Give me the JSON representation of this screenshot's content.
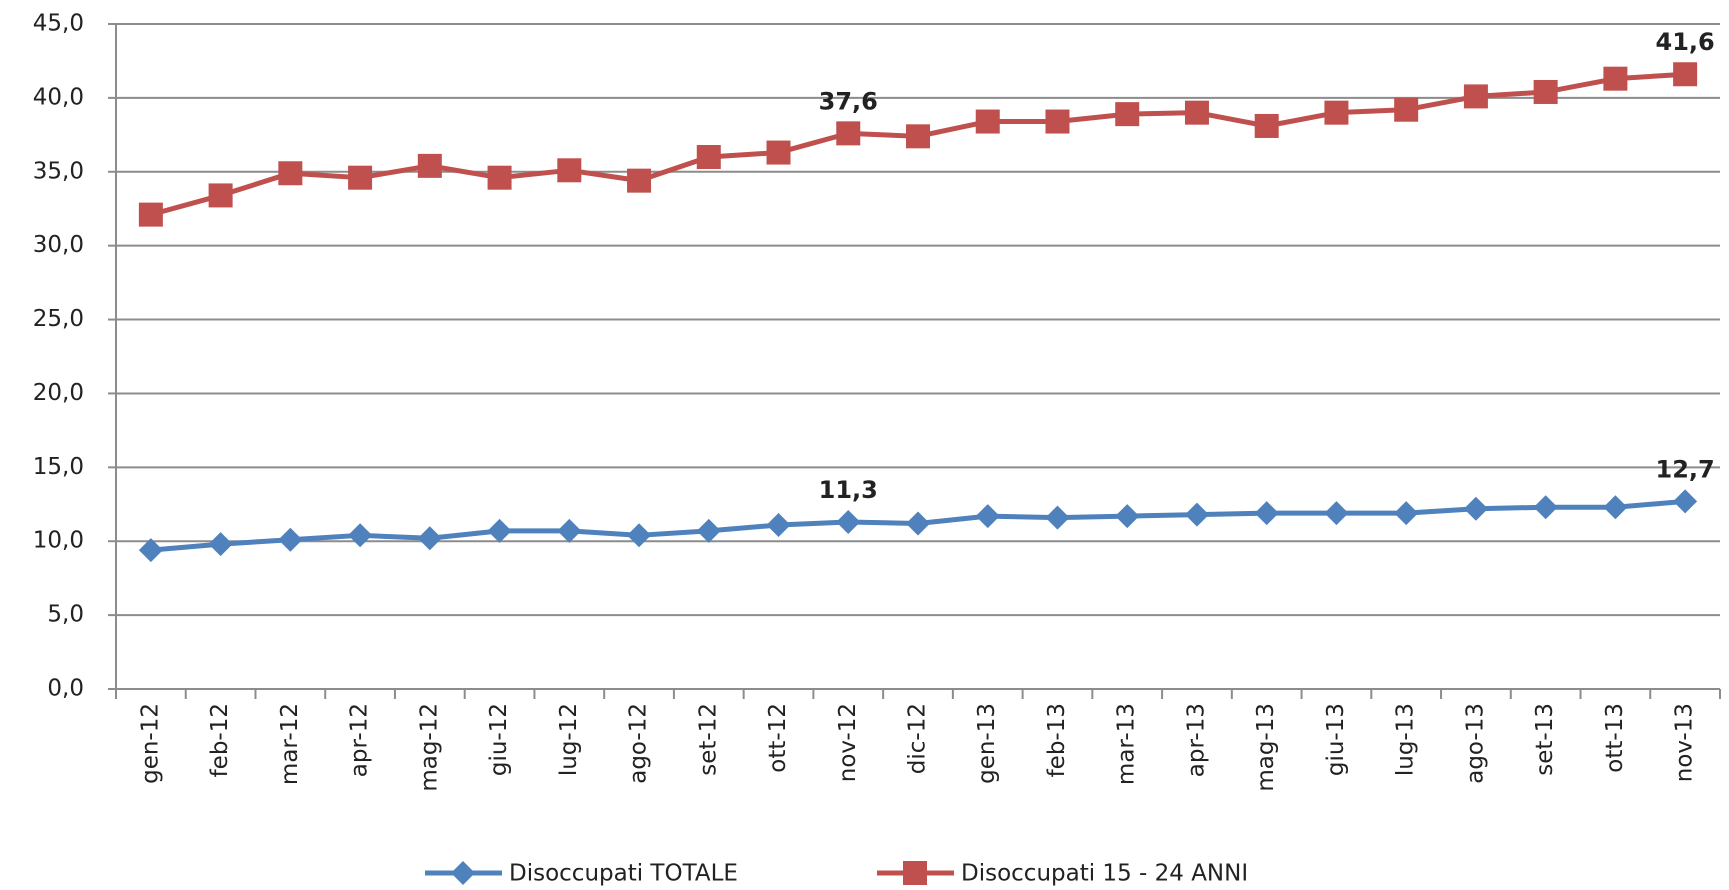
{
  "chart_data": {
    "type": "line",
    "categories": [
      "gen-12",
      "feb-12",
      "mar-12",
      "apr-12",
      "mag-12",
      "giu-12",
      "lug-12",
      "ago-12",
      "set-12",
      "ott-12",
      "nov-12",
      "dic-12",
      "gen-13",
      "feb-13",
      "mar-13",
      "apr-13",
      "mag-13",
      "giu-13",
      "lug-13",
      "ago-13",
      "set-13",
      "ott-13",
      "nov-13"
    ],
    "series": [
      {
        "name": "Disoccupati TOTALE",
        "color": "#4f81bd",
        "marker": "diamond",
        "values": [
          9.4,
          9.8,
          10.1,
          10.4,
          10.2,
          10.7,
          10.7,
          10.4,
          10.7,
          11.1,
          11.3,
          11.2,
          11.7,
          11.6,
          11.7,
          11.8,
          11.9,
          11.9,
          11.9,
          12.2,
          12.3,
          12.3,
          12.7
        ],
        "value_labels": [
          null,
          null,
          null,
          null,
          null,
          null,
          null,
          null,
          null,
          null,
          "11,3",
          null,
          null,
          null,
          null,
          null,
          null,
          null,
          null,
          null,
          null,
          null,
          "12,7"
        ]
      },
      {
        "name": "Disoccupati 15 - 24 ANNI",
        "color": "#c0504d",
        "marker": "square",
        "values": [
          32.1,
          33.4,
          34.9,
          34.6,
          35.4,
          34.6,
          35.1,
          34.4,
          36.0,
          36.3,
          37.6,
          37.4,
          38.4,
          38.4,
          38.9,
          39.0,
          38.1,
          39.0,
          39.2,
          40.1,
          40.4,
          41.3,
          41.6
        ],
        "value_labels": [
          null,
          null,
          null,
          null,
          null,
          null,
          null,
          null,
          null,
          null,
          "37,6",
          null,
          null,
          null,
          null,
          null,
          null,
          null,
          null,
          null,
          null,
          null,
          "41,6"
        ]
      }
    ],
    "ylim": [
      0,
      45
    ],
    "yticks": [
      {
        "value": 0,
        "label": "0,0"
      },
      {
        "value": 5,
        "label": "5,0"
      },
      {
        "value": 10,
        "label": "10,0"
      },
      {
        "value": 15,
        "label": "15,0"
      },
      {
        "value": 20,
        "label": "20,0"
      },
      {
        "value": 25,
        "label": "25,0"
      },
      {
        "value": 30,
        "label": "30,0"
      },
      {
        "value": 35,
        "label": "35,0"
      },
      {
        "value": 40,
        "label": "40,0"
      },
      {
        "value": 45,
        "label": "45,0"
      }
    ],
    "grid": true,
    "legend": "bottom"
  }
}
